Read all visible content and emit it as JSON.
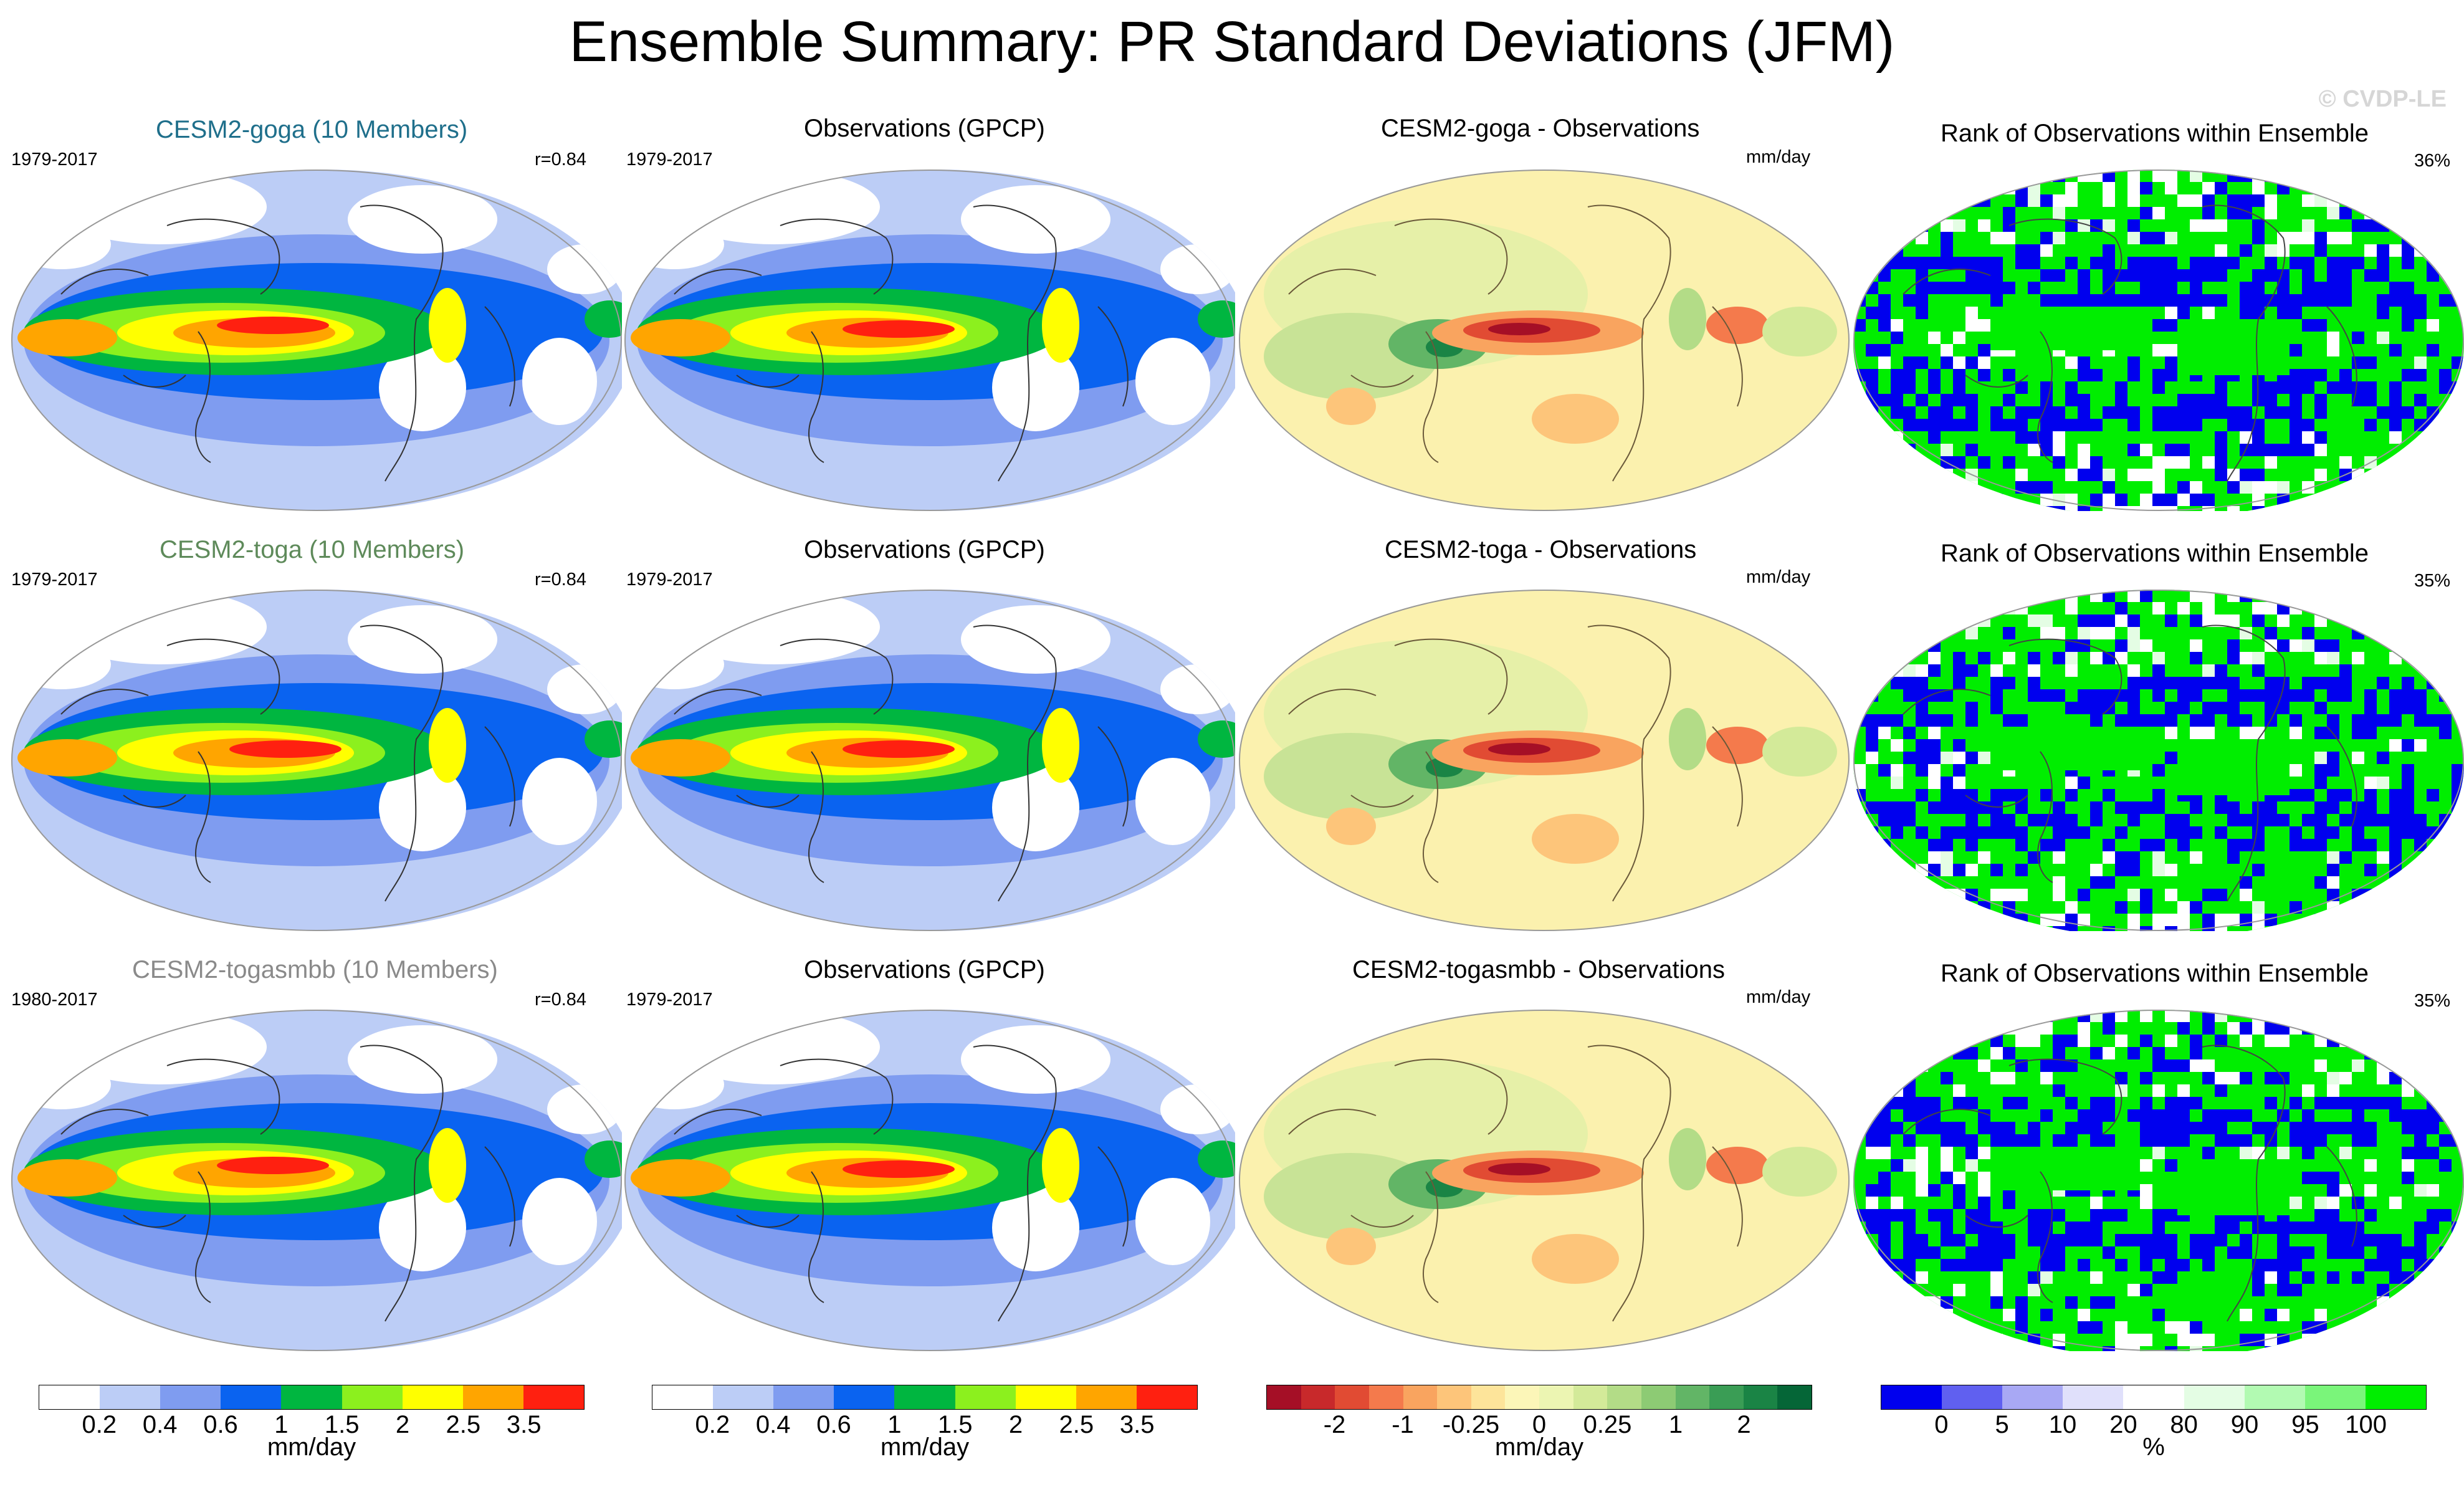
{
  "title": "Ensemble Summary: PR Standard Deviations (JFM)",
  "watermark": "© CVDP-LE",
  "rows": [
    {
      "model_title": "CESM2-goga (10 Members)",
      "model_title_color": "#1f6f8b",
      "model_years": "1979-2017",
      "corr": "r=0.84",
      "obs_title": "Observations (GPCP)",
      "obs_years": "1979-2017",
      "diff_title": "CESM2-goga - Observations",
      "diff_units": "mm/day",
      "rank_title": "Rank of Observations within Ensemble",
      "rank_pct": "36%"
    },
    {
      "model_title": "CESM2-toga (10 Members)",
      "model_title_color": "#5e8a5a",
      "model_years": "1979-2017",
      "corr": "r=0.84",
      "obs_title": "Observations (GPCP)",
      "obs_years": "1979-2017",
      "diff_title": "CESM2-toga - Observations",
      "diff_units": "mm/day",
      "rank_title": "Rank of Observations within Ensemble",
      "rank_pct": "35%"
    },
    {
      "model_title": "CESM2-togasmbb (10 Members)",
      "model_title_color": "#8a8a8a",
      "model_years": "1980-2017",
      "corr": "r=0.84",
      "obs_title": "Observations (GPCP)",
      "obs_years": "1979-2017",
      "diff_title": "CESM2-togasmbb - Observations",
      "diff_units": "mm/day",
      "rank_title": "Rank of Observations within Ensemble",
      "rank_pct": "35%"
    }
  ],
  "colorbars": {
    "std": {
      "colors": [
        "#ffffff",
        "#bccdf6",
        "#7f9cf0",
        "#0a63f0",
        "#00b640",
        "#8cf01e",
        "#ffff00",
        "#ffa500",
        "#ff2010"
      ],
      "ticks": [
        "0.2",
        "0.4",
        "0.6",
        "1",
        "1.5",
        "2",
        "2.5",
        "3.5"
      ],
      "unit": "mm/day"
    },
    "std_obs": {
      "colors": [
        "#ffffff",
        "#bccdf6",
        "#7f9cf0",
        "#0a63f0",
        "#00b640",
        "#8cf01e",
        "#ffff00",
        "#ffa500",
        "#ff2010"
      ],
      "ticks": [
        "0.2",
        "0.4",
        "0.6",
        "1",
        "1.5",
        "2",
        "2.5",
        "3.5"
      ],
      "unit": "mm/day"
    },
    "diff": {
      "colors": [
        "#a50f26",
        "#c8292b",
        "#e14b33",
        "#f47a4c",
        "#f9a45f",
        "#fdc57a",
        "#fde49a",
        "#fcf6b8",
        "#ecf5b2",
        "#d3ea99",
        "#b3dc87",
        "#8dcb74",
        "#62b566",
        "#3a9d55",
        "#1a8445",
        "#056637"
      ],
      "ticks": [
        "-2",
        "-1",
        "-0.25",
        "0",
        "0.25",
        "1",
        "2"
      ],
      "unit": "mm/day"
    },
    "rank": {
      "colors": [
        "#0000ee",
        "#6060f0",
        "#a8a8f4",
        "#e0e0fb",
        "#ffffff",
        "#e4fde4",
        "#b2fab2",
        "#7af57a",
        "#00ee00"
      ],
      "ticks": [
        "0",
        "5",
        "10",
        "20",
        "80",
        "90",
        "95",
        "100"
      ],
      "unit": "%"
    }
  }
}
